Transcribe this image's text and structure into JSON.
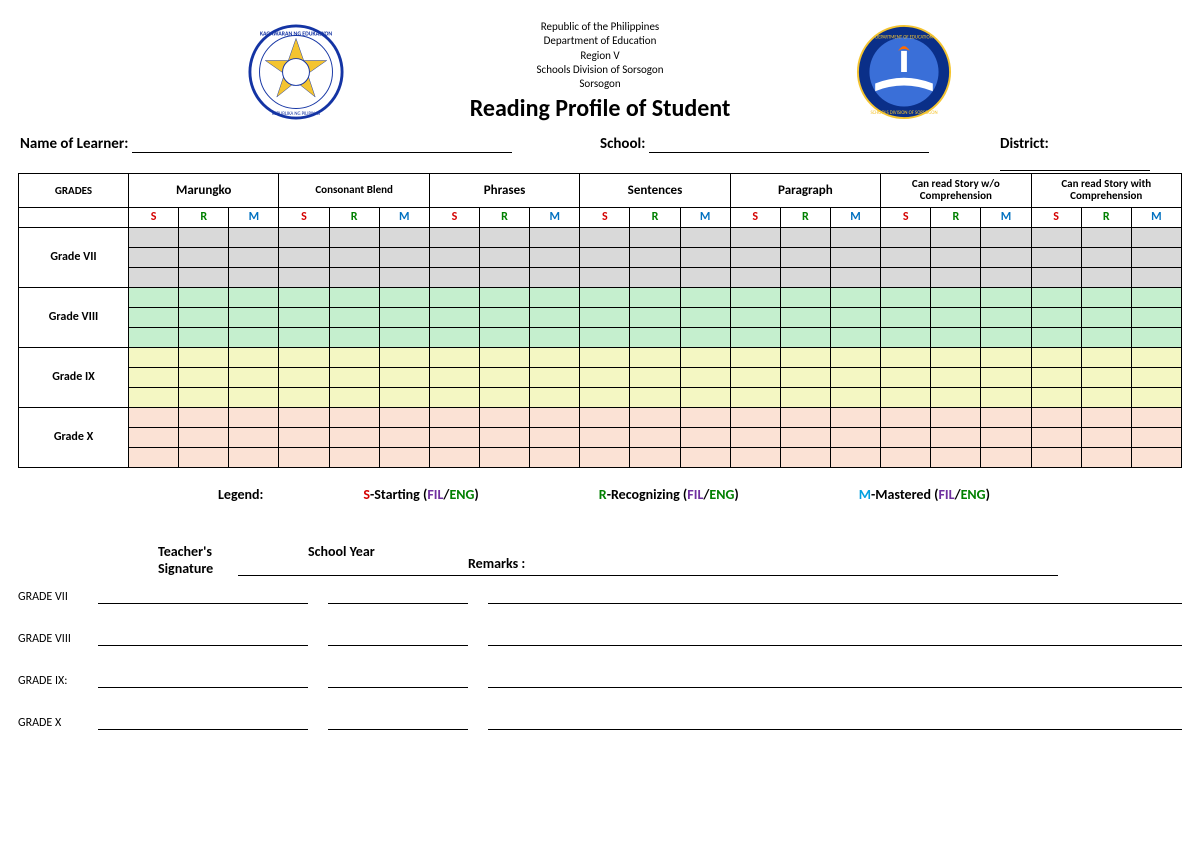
{
  "header": {
    "lines": [
      "Republic of the Philippines",
      "Department of Education",
      "Region V",
      "Schools Division of Sorsogon",
      "Sorsogon"
    ],
    "title": "Reading Profile of Student"
  },
  "fields": {
    "learner_label": "Name of Learner:",
    "school_label": "School:",
    "district_label": "District:"
  },
  "table": {
    "grades_header": "GRADES",
    "categories": [
      "Marungko",
      "Consonant Blend",
      "Phrases",
      "Sentences",
      "Paragraph",
      "Can read Story w/o Comprehension",
      "Can read Story with Comprehension"
    ],
    "srm": [
      "S",
      "R",
      "M"
    ],
    "grade_rows": [
      "Grade VII",
      "Grade VIII",
      "Grade IX",
      "Grade X"
    ],
    "row_colors": [
      "#d9d9d9",
      "#c5efce",
      "#f4f7c3",
      "#fbe2d5"
    ]
  },
  "legend": {
    "label": "Legend:",
    "items": [
      {
        "code": "S",
        "code_color": "#d40000",
        "text": "-Starting (",
        "fil": "FIL",
        "sep": "/",
        "eng": "ENG",
        "close": ")"
      },
      {
        "code": "R",
        "code_color": "#008000",
        "text": "-Recognizing (",
        "fil": "FIL",
        "sep": "/",
        "eng": "ENG",
        "close": ")"
      },
      {
        "code": "M",
        "code_color": "#00a0e0",
        "text": "-Mastered (",
        "fil": "FIL",
        "sep": "/",
        "eng": "ENG",
        "close": ")"
      }
    ],
    "fil_color": "#7030a0",
    "eng_color": "#008000"
  },
  "teacher": {
    "sig_label": "Teacher's Signature",
    "year_label": "School Year",
    "remarks_label": "Remarks :"
  },
  "sig_rows": [
    "GRADE VII",
    "GRADE VIII",
    "GRADE IX:",
    "GRADE X"
  ]
}
